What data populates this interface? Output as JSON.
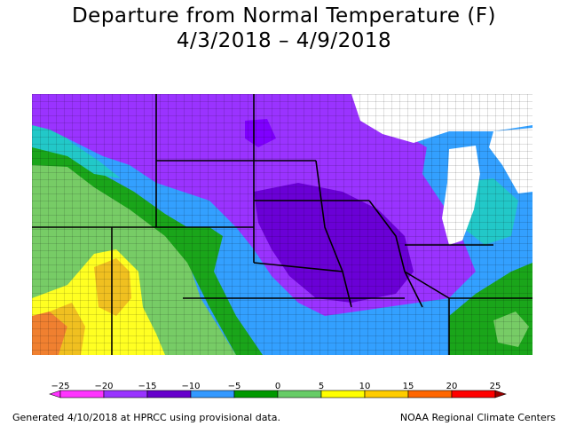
{
  "title": {
    "line1": "Departure from Normal Temperature (F)",
    "line2": "4/3/2018 – 4/9/2018"
  },
  "legend": {
    "ticks": [
      "−25",
      "−20",
      "−15",
      "−10",
      "−5",
      "0",
      "5",
      "10",
      "15",
      "20",
      "25"
    ],
    "colors": [
      "#ff33ff",
      "#9933ff",
      "#6600cc",
      "#3399ff",
      "#009900",
      "#66cc66",
      "#ffff00",
      "#ffcc00",
      "#ff6600",
      "#ff0000",
      "#990000"
    ]
  },
  "footer": {
    "left": "Generated 4/10/2018 at HPRCC using provisional data.",
    "right": "NOAA Regional Climate Centers"
  },
  "map_colors": {
    "deep_purple": "#7f00ff",
    "purple": "#9a33ff",
    "violet": "#6a00d6",
    "blue": "#33a0ff",
    "cyan": "#22c8c8",
    "green": "#1aa51a",
    "light_green": "#77cc66",
    "yellow": "#ffff22",
    "gold": "#f0c020",
    "orange": "#f08030",
    "lake": "#ffffff",
    "border": "#000000"
  }
}
